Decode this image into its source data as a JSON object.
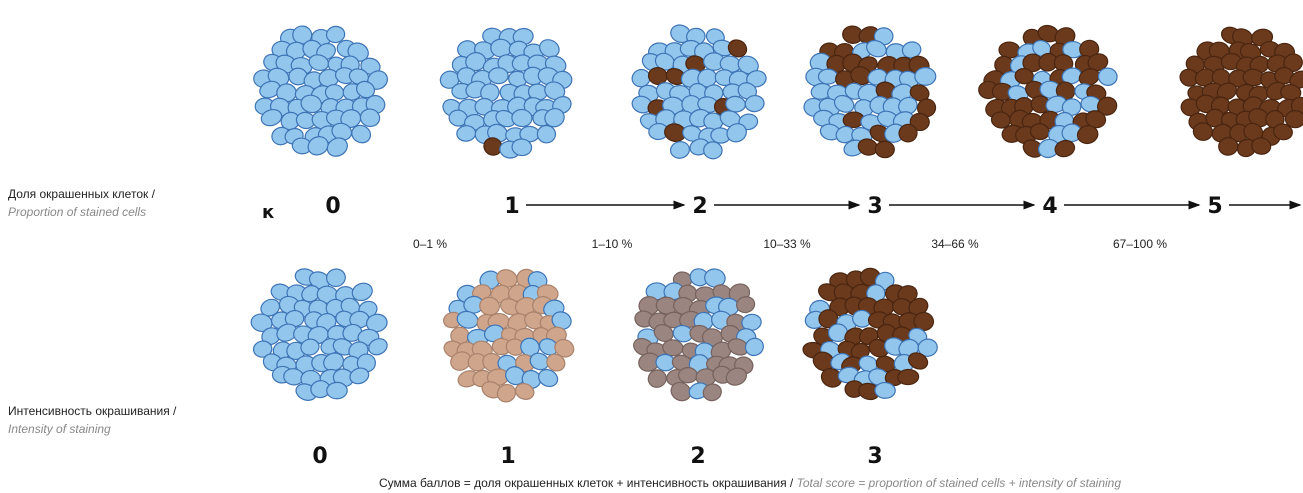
{
  "rows": [
    {
      "label_ru": "Доля окрашенных клеток /",
      "label_en": "Proportion of stained cells",
      "scores": [
        "0",
        "1",
        "2",
        "3",
        "4",
        "5"
      ],
      "ranges": [
        "0–1 %",
        "1–10 %",
        "10–33 %",
        "34–66 %",
        "67–100 %"
      ]
    },
    {
      "label_ru": "Интенсивность окрашивания /",
      "label_en": "Intensity of staining",
      "scores": [
        "0",
        "1",
        "2",
        "3"
      ]
    }
  ],
  "marker": "к",
  "caption": {
    "ru": "Сумма баллов = доля окрашенных клеток + интенсивность окрашивания /",
    "en": "Total score = proportion of stained cells + intensity of staining"
  }
}
